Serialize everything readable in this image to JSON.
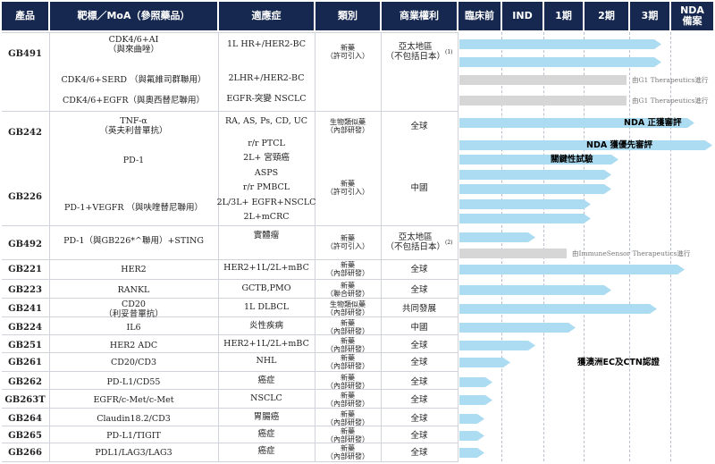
{
  "headers": [
    "產品",
    "靶標／MoA（參照藥品）",
    "適應症",
    "類別",
    "商業權利",
    "臨床前",
    "IND",
    "1期",
    "2期",
    "3期",
    "NDA\n備案"
  ],
  "rows": [
    {
      "product": "GB491",
      "target": "CDK4/6+AI\n（與來曲唑）",
      "indication": "1L HR+/HER2-BC",
      "category": "新藥\n（許可引入）",
      "rights": "亞太地區\n（不包括日本）",
      "rights_sup": "(1)",
      "progress": 0.8,
      "note": "",
      "label": ""
    },
    {
      "product": "",
      "target": "",
      "indication": "",
      "category": "",
      "rights": "",
      "progress": 0.8,
      "note": "",
      "label": ""
    },
    {
      "product": "",
      "target": "CDK4/6+SERD （與氟維司群聯用）",
      "indication": "2LHR+/HER2-BC",
      "category": "",
      "rights": "",
      "progress": 0.66,
      "grey": true,
      "note": "由G1 Therapeutics進行",
      "label": ""
    },
    {
      "product": "",
      "target": "CDK4/6+EGFR（與奧西替尼聯用）",
      "indication": "EGFR-突變 NSCLC",
      "category": "",
      "rights": "",
      "progress": 0.66,
      "grey": true,
      "note": "由G1 Therapeutics進行",
      "label": ""
    },
    {
      "product": "GB242",
      "target": "TNF-α\n（英夫利昔單抗）",
      "indication": "RA, AS, Ps, CD, UC",
      "category": "生物類似藥\n（內部研發）",
      "rights": "全球",
      "progress": 0.93,
      "note": "",
      "label": "NDA 正獲審評"
    },
    {
      "product": "",
      "target": "",
      "indication": "r/r PTCL",
      "category": "",
      "rights": "",
      "progress": 1.0,
      "note": "",
      "label": "NDA 獲優先審評"
    },
    {
      "product": "",
      "target": "PD-1",
      "indication": "2L+ 宮頸癌",
      "category": "",
      "rights": "",
      "progress": 0.63,
      "note": "",
      "label": "關鍵性試驗"
    },
    {
      "product": "",
      "target": "",
      "indication": "ASPS",
      "category": "新藥\n（許可引入）",
      "rights": "中國",
      "progress": 0.6,
      "note": "",
      "label": ""
    },
    {
      "product": "GB226",
      "target": "",
      "indication": "r/r PMBCL",
      "category": "",
      "rights": "",
      "progress": 0.6,
      "note": "",
      "label": ""
    },
    {
      "product": "",
      "target": "PD-1+VEGFR （與呋喹替尼聯用）",
      "indication": "2L/3L+ EGFR+NSCLC",
      "category": "",
      "rights": "",
      "progress": 0.52,
      "note": "",
      "label": ""
    },
    {
      "product": "",
      "target": "",
      "indication": "2L+mCRC",
      "category": "",
      "rights": "",
      "progress": 0.52,
      "note": "",
      "label": ""
    },
    {
      "product": "GB492",
      "target": "PD-1（與GB226*^聯用）+STING",
      "indication": "實體瘤",
      "category": "新藥\n（許可引入）",
      "rights": "亞太地區\n（不包括日本）",
      "rights_sup": "(2)",
      "progress": 0.3,
      "note": "",
      "label": ""
    },
    {
      "product": "",
      "target": "",
      "indication": "",
      "category": "",
      "rights": "",
      "progress": 0.425,
      "grey": true,
      "note": "由ImmuneSensor Therapeutics進行",
      "label": ""
    },
    {
      "product": "GB221",
      "target": "HER2",
      "indication": "HER2+1L/2L+mBC",
      "category": "新藥\n（內部研發）",
      "rights": "全球",
      "progress": 0.89,
      "note": "",
      "label": ""
    },
    {
      "product": "GB223",
      "target": "RANKL",
      "indication": "GCTB,PMO",
      "category": "新藥\n（聯合研發）",
      "rights": "全球",
      "progress": 0.6,
      "note": "",
      "label": ""
    },
    {
      "product": "GB241",
      "target": "CD20\n（利妥昔單抗）",
      "indication": "1L DLBCL",
      "category": "生物類似藥\n（內部研發）",
      "rights": "共同發展",
      "progress": 0.78,
      "note": "",
      "label": ""
    },
    {
      "product": "GB224",
      "target": "IL6",
      "indication": "炎性疾病",
      "category": "新藥\n（內部研發）",
      "rights": "中國",
      "progress": 0.46,
      "note": "",
      "label": ""
    },
    {
      "product": "GB251",
      "target": "HER2 ADC",
      "indication": "HER2+1L/2L+mBC",
      "category": "新藥\n（內部研發）",
      "rights": "全球",
      "progress": 0.3,
      "note": "",
      "label": ""
    },
    {
      "product": "GB261",
      "target": "CD20/CD3",
      "indication": "NHL",
      "category": "新藥\n（內部研發）",
      "rights": "全球",
      "progress": 0.2,
      "note": "",
      "label": "獲澳洲EC及CTN認證"
    },
    {
      "product": "GB262",
      "target": "PD-L1/CD55",
      "indication": "癌症",
      "category": "新藥\n（內部研發）",
      "rights": "全球",
      "progress": 0.13,
      "note": "",
      "label": ""
    },
    {
      "product": "GB263T",
      "target": "EGFR/c-Met/c-Met",
      "indication": "NSCLC",
      "category": "新藥\n（內部研發）",
      "rights": "全球",
      "progress": 0.13,
      "note": "",
      "label": ""
    },
    {
      "product": "GB264",
      "target": "Claudin18.2/CD3",
      "indication": "胃腸癌",
      "category": "新藥\n（內部研發）",
      "rights": "全球",
      "progress": 0.1,
      "note": "",
      "label": ""
    },
    {
      "product": "GB265",
      "target": "PD-L1/TIGIT",
      "indication": "癌症",
      "category": "新藥\n（內部研發）",
      "rights": "全球",
      "progress": 0.1,
      "note": "",
      "label": ""
    },
    {
      "product": "GB266",
      "target": "PDL1/LAG3/LAG3",
      "indication": "癌症",
      "category": "新藥\n（內部研發）",
      "rights": "全球",
      "progress": 0.1,
      "note": "",
      "label": ""
    }
  ],
  "colors": {
    "header": "#16284f",
    "bar": "#abdcf1",
    "bar_partner": "#d6d6d6"
  }
}
